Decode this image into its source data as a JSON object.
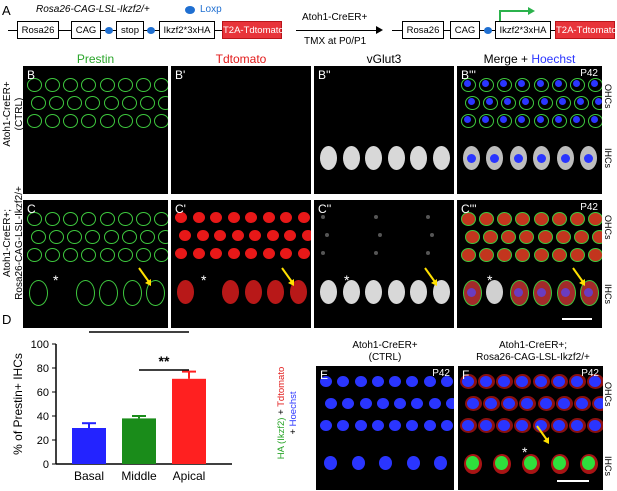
{
  "panelA": {
    "letter": "A",
    "allele_name": "Rosa26-CAG-LSL-Ikzf2/+",
    "loxp_label": "Loxp",
    "before": [
      "Rosa26",
      "CAG",
      "stop",
      "Ikzf2*3xHA",
      "T2A-Tdtomato"
    ],
    "after": [
      "Rosa26",
      "CAG",
      "Ikzf2*3xHA",
      "T2A-Tdtomato"
    ],
    "arrow_top": "Atoh1-CreER+",
    "arrow_bottom": "TMX at P0/P1"
  },
  "columns": {
    "prestin": "Prestin",
    "tdtomato": "Tdtomato",
    "vglut3": "vGlut3",
    "merge": "Merge + ",
    "hoechst": "Hoechst"
  },
  "rows": {
    "ctrl_line1": "Atoh1-CreER+",
    "ctrl_line2": "(CTRL)",
    "ikzf_line1": "Atoh1-CreER+;",
    "ikzf_line2": "Rosa26-CAG-LSL-Ikzf2/+"
  },
  "panels": {
    "B": "B",
    "B1": "B'",
    "B2": "B''",
    "B3": "B'''",
    "C": "C",
    "C1": "C'",
    "C2": "C''",
    "C3": "C'''",
    "E": "E",
    "F": "F",
    "age": "P42"
  },
  "side_labels": {
    "ohc": "OHCs",
    "ihc": "IHCs"
  },
  "star": "*",
  "panelD": {
    "letter": "D",
    "significance": "**"
  },
  "panelE_title": {
    "line1": "Atoh1-CreER+",
    "line2": "(CTRL)"
  },
  "panelF_title": {
    "line1": "Atoh1-CreER+;",
    "line2": "Rosa26-CAG-LSL-Ikzf2/+"
  },
  "ef_axis": {
    "ha": "HA (Ikzf2)",
    "plus1": " + ",
    "tdt": "Tdtomato",
    "plus2": "+ ",
    "hoechst": "Hoechst"
  },
  "chart_data": {
    "type": "bar",
    "categories": [
      "Basal",
      "Middle",
      "Apical"
    ],
    "values": [
      30,
      38,
      71
    ],
    "errors": [
      4,
      2,
      6
    ],
    "colors": [
      "#2323ff",
      "#1a8c1a",
      "#ff2020"
    ],
    "ylabel": "% of Prestin+ IHCs",
    "ylim": [
      0,
      100
    ],
    "yticks": [
      0,
      20,
      40,
      60,
      80,
      100
    ],
    "annotations": [
      "**",
      "**"
    ]
  },
  "colors": {
    "green": "#3ec83e",
    "red": "#e81818",
    "blue": "#2a35ff"
  }
}
